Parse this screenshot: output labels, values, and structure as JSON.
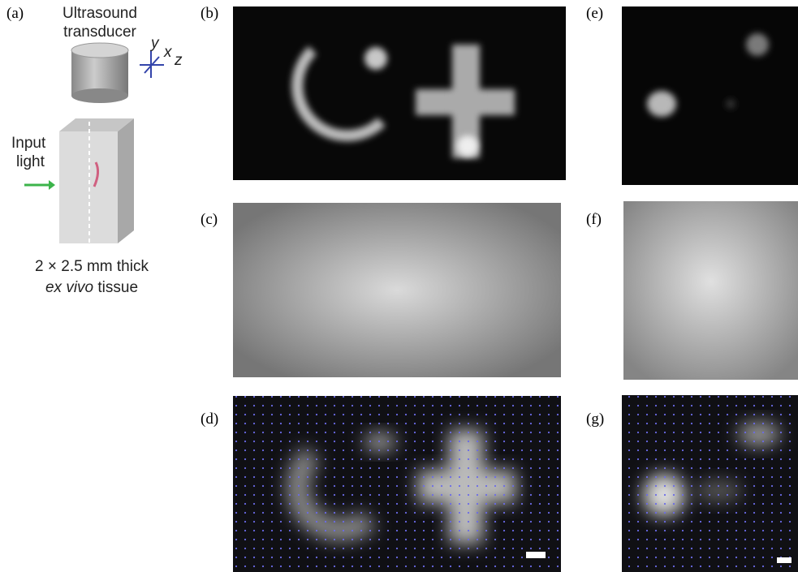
{
  "panel_labels": [
    "(a)",
    "(b)",
    "(c)",
    "(d)",
    "(e)",
    "(f)",
    "(g)"
  ],
  "schematic": {
    "transducer": [
      "Ultrasound",
      "transducer"
    ],
    "axes": [
      "y",
      "x",
      "z"
    ],
    "input": [
      "Input",
      "light"
    ],
    "caption_line1": "2 × 2.5 mm thick",
    "caption_italic": "ex vivo",
    "caption_rest": "tissue"
  }
}
